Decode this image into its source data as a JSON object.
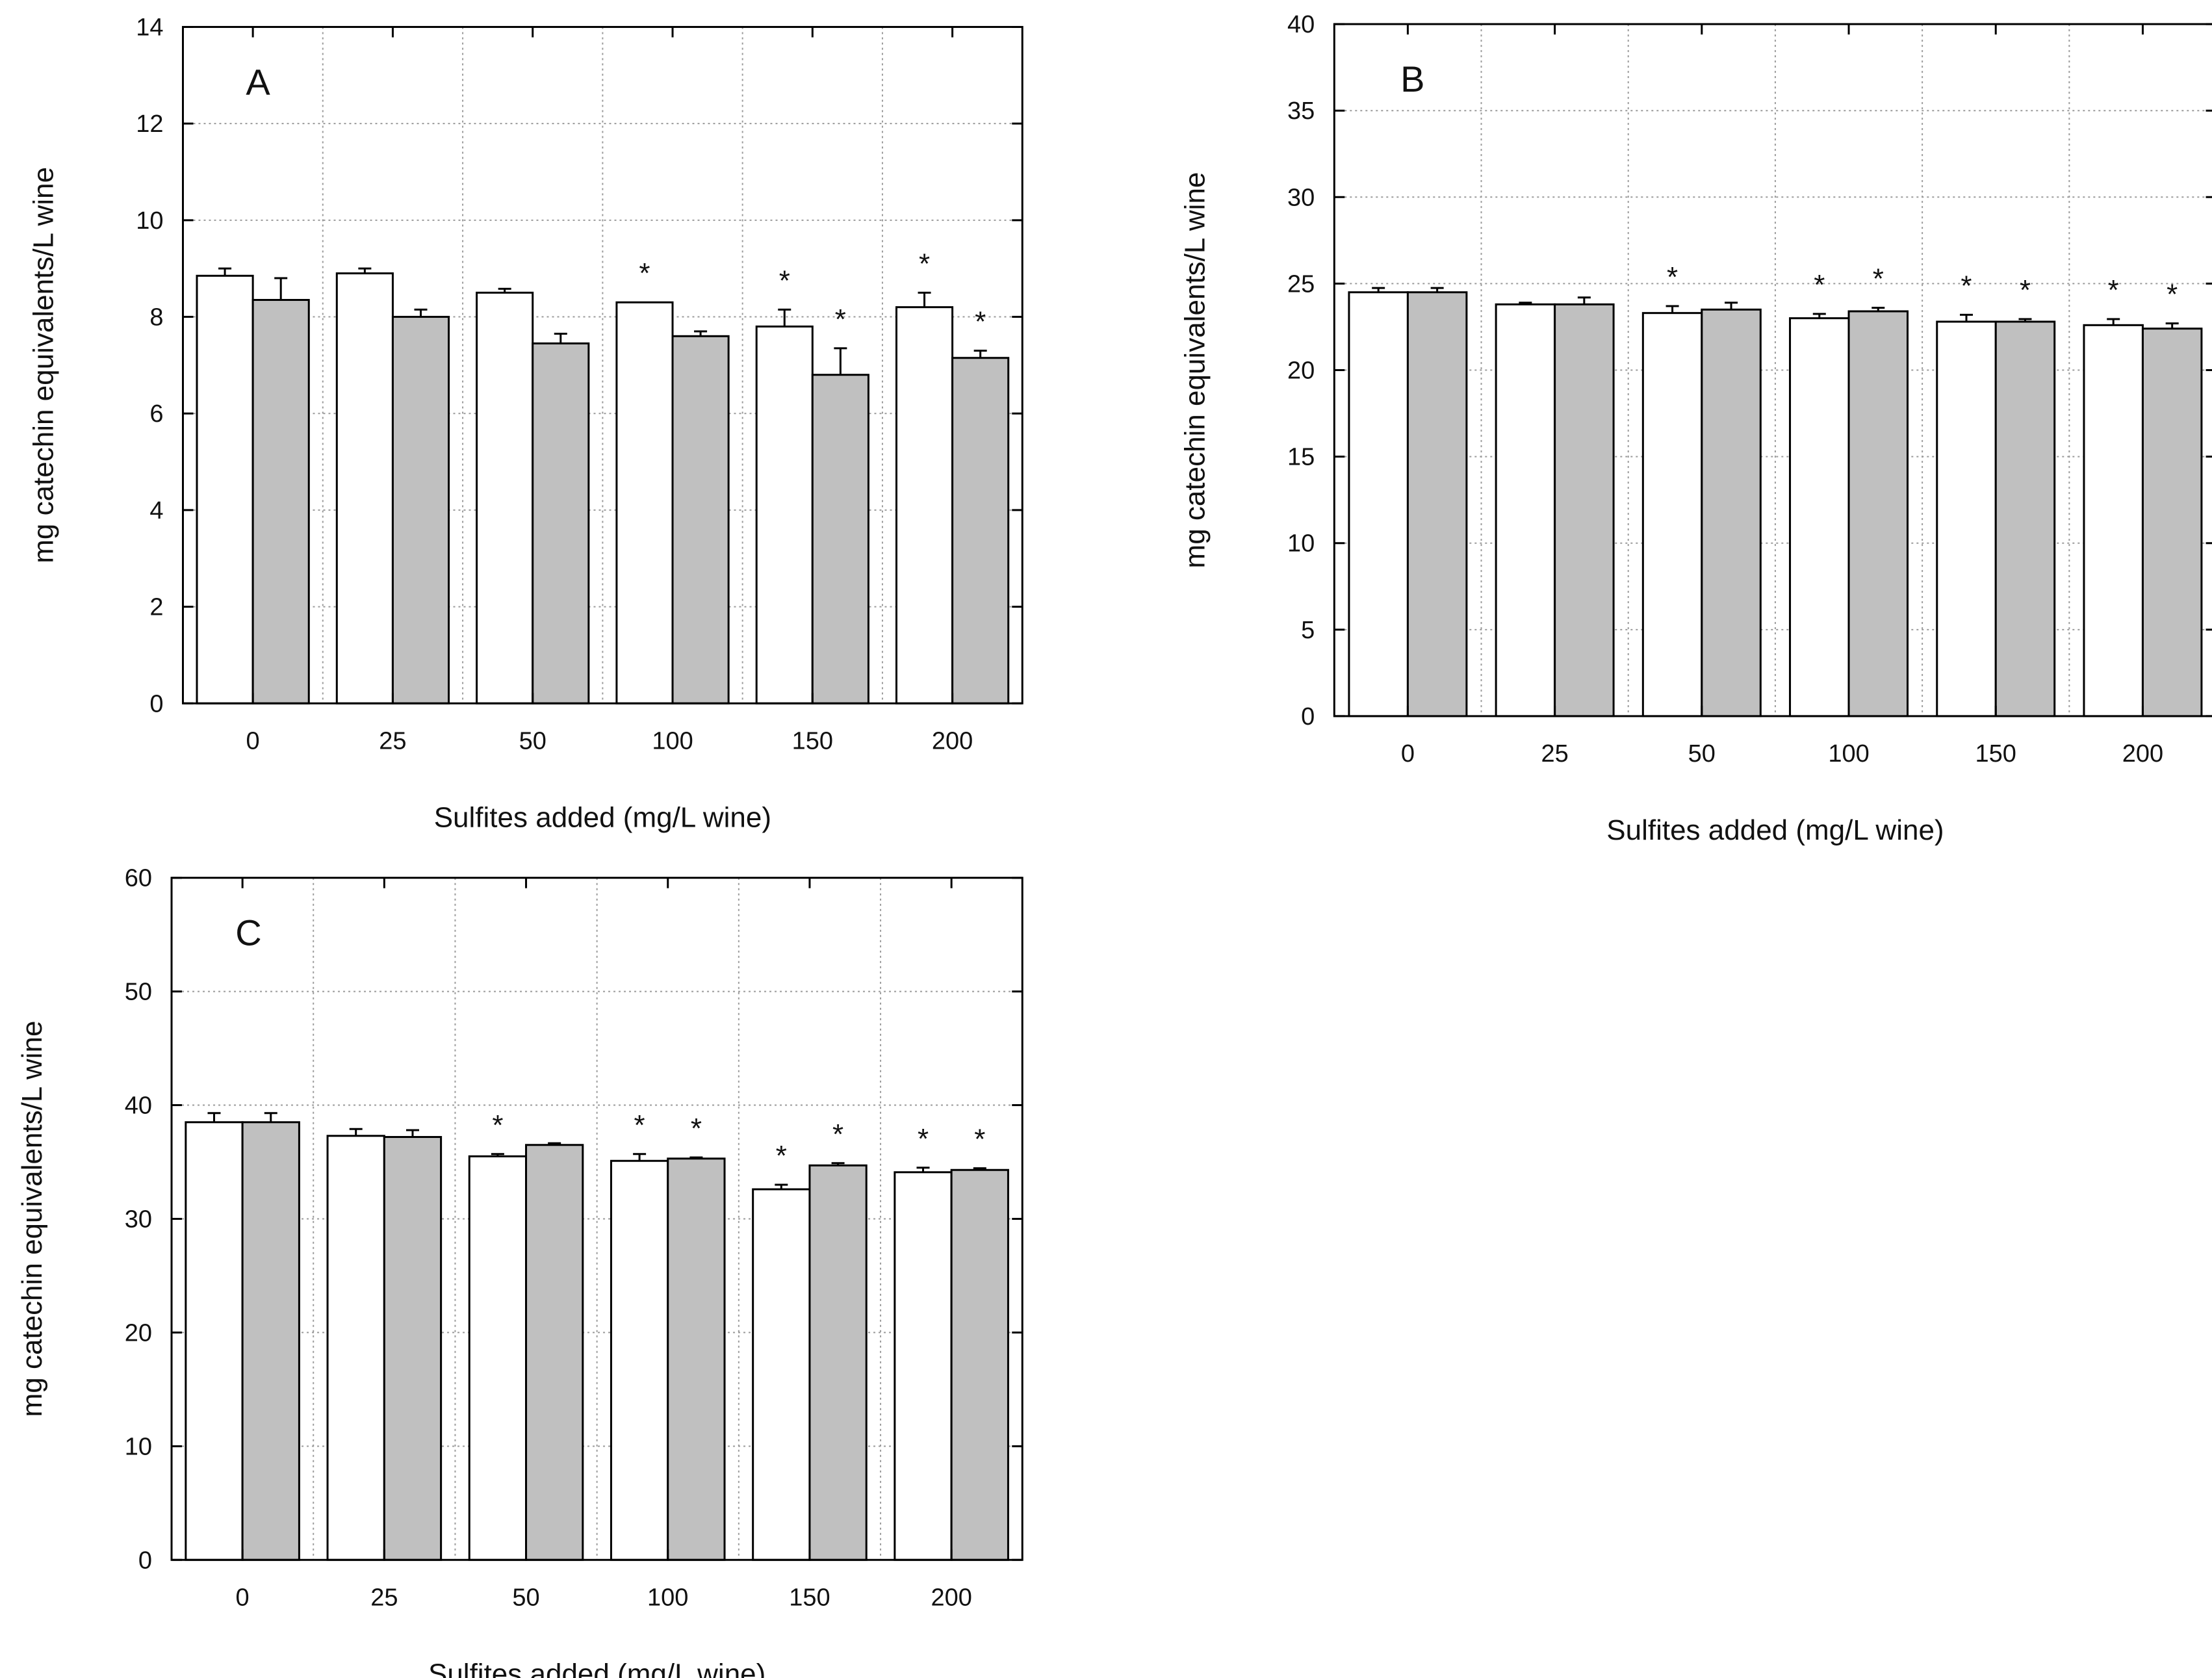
{
  "chart_data": [
    {
      "type": "bar",
      "panel_label": "A",
      "categories": [
        "0",
        "25",
        "50",
        "100",
        "150",
        "200"
      ],
      "xlabel": "Sulfites added (mg/L wine)",
      "ylabel": "mg catechin equivalents/L wine",
      "ylim": [
        0,
        14
      ],
      "yticks": [
        "0",
        "2",
        "4",
        "6",
        "8",
        "10",
        "12",
        "14"
      ],
      "grid": true,
      "series": [
        {
          "fill": "#ffffff",
          "values": [
            8.85,
            8.9,
            8.5,
            8.3,
            7.8,
            8.2
          ],
          "errors": [
            0.15,
            0.1,
            0.08,
            0.0,
            0.35,
            0.3
          ],
          "marks": [
            "",
            "",
            "",
            "*",
            "*",
            "*"
          ]
        },
        {
          "fill": "#c0c0c0",
          "values": [
            8.35,
            8.0,
            7.45,
            7.6,
            6.8,
            7.15
          ],
          "errors": [
            0.45,
            0.15,
            0.2,
            0.1,
            0.55,
            0.15
          ],
          "marks": [
            "",
            "",
            "",
            "",
            "*",
            "*"
          ]
        }
      ]
    },
    {
      "type": "bar",
      "panel_label": "B",
      "categories": [
        "0",
        "25",
        "50",
        "100",
        "150",
        "200"
      ],
      "xlabel": "Sulfites added (mg/L wine)",
      "ylabel": "mg catechin equivalents/L wine",
      "ylim": [
        0,
        40
      ],
      "yticks": [
        "0",
        "5",
        "10",
        "15",
        "20",
        "25",
        "30",
        "35",
        "40"
      ],
      "grid": true,
      "series": [
        {
          "fill": "#ffffff",
          "values": [
            24.5,
            23.8,
            23.3,
            23.0,
            22.8,
            22.6
          ],
          "errors": [
            0.25,
            0.1,
            0.4,
            0.25,
            0.4,
            0.35
          ],
          "marks": [
            "",
            "",
            "*",
            "*",
            "*",
            "*"
          ]
        },
        {
          "fill": "#c0c0c0",
          "values": [
            24.5,
            23.8,
            23.5,
            23.4,
            22.8,
            22.4
          ],
          "errors": [
            0.25,
            0.4,
            0.4,
            0.2,
            0.15,
            0.3
          ],
          "marks": [
            "",
            "",
            "",
            "*",
            "*",
            "*"
          ]
        }
      ]
    },
    {
      "type": "bar",
      "panel_label": "C",
      "categories": [
        "0",
        "25",
        "50",
        "100",
        "150",
        "200"
      ],
      "xlabel": "Sulfites added (mg/L wine)",
      "ylabel": "mg catechin equivalents/L wine",
      "ylim": [
        0,
        60
      ],
      "yticks": [
        "0",
        "10",
        "20",
        "30",
        "40",
        "50",
        "60"
      ],
      "grid": true,
      "series": [
        {
          "fill": "#ffffff",
          "values": [
            38.5,
            37.3,
            35.5,
            35.1,
            32.6,
            34.1
          ],
          "errors": [
            0.8,
            0.6,
            0.2,
            0.6,
            0.4,
            0.4
          ],
          "marks": [
            "",
            "",
            "*",
            "*",
            "*",
            "*"
          ]
        },
        {
          "fill": "#c0c0c0",
          "values": [
            38.5,
            37.2,
            36.5,
            35.3,
            34.7,
            34.3
          ],
          "errors": [
            0.8,
            0.6,
            0.15,
            0.1,
            0.2,
            0.15
          ],
          "marks": [
            "",
            "",
            "",
            "*",
            "*",
            "*"
          ]
        }
      ]
    }
  ]
}
